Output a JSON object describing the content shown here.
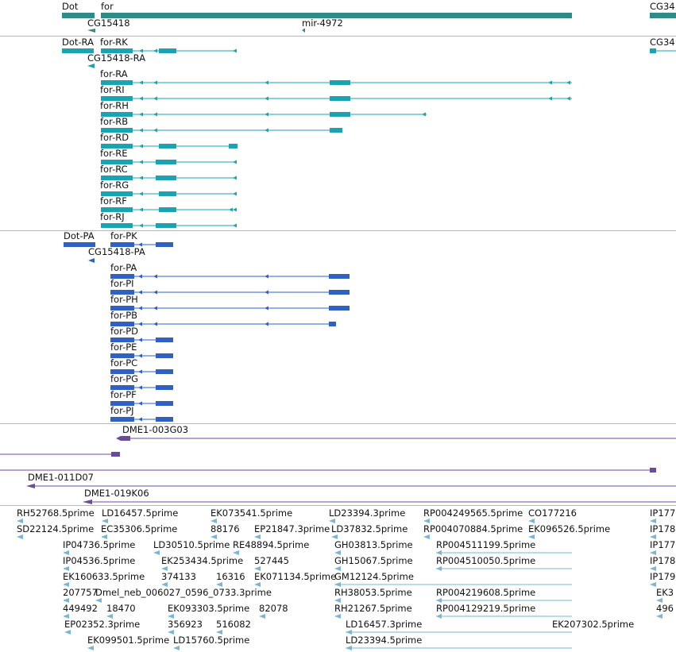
{
  "colors": {
    "gene": "#2e8b86",
    "transcript": "#1aa3b5",
    "protein": "#2d62c2",
    "clone": "#6a4c9c",
    "est": "#7ab4d8",
    "divider": "#b8b8b8"
  },
  "gene_track": {
    "labels": [
      "Dot",
      "for",
      "CG34",
      "CG15418",
      "mir-4972"
    ]
  },
  "transcript_track": {
    "labels": [
      "Dot-RA",
      "for-RK",
      "CG34",
      "CG15418-RA",
      "for-RA",
      "for-RI",
      "for-RH",
      "for-RB",
      "for-RD",
      "for-RE",
      "for-RC",
      "for-RG",
      "for-RF",
      "for-RJ"
    ]
  },
  "protein_track": {
    "labels": [
      "Dot-PA",
      "for-PK",
      "CG15418-PA",
      "for-PA",
      "for-PI",
      "for-PH",
      "for-PB",
      "for-PD",
      "for-PE",
      "for-PC",
      "for-PG",
      "for-PF",
      "for-PJ"
    ]
  },
  "clone_track": {
    "labels": [
      "DME1-003G03",
      "DME1-011D07",
      "DME1-019K06"
    ]
  },
  "est_track": {
    "labels": [
      "RH52768.5prime",
      "LD16457.5prime",
      "EK073541.5prime",
      "LD23394.3prime",
      "RP004249565.5prime",
      "CO177216",
      "IP177",
      "SD22124.5prime",
      "EC35306.5prime",
      "88176",
      "EP21847.3prime",
      "LD37832.5prime",
      "RP004070884.5prime",
      "EK096526.5prime",
      "IP178",
      "IP04736.5prime",
      "LD30510.5prime",
      "RE48894.5prime",
      "GH03813.5prime",
      "RP004511199.5prime",
      "IP177",
      "IP04536.5prime",
      "EK253434.5prime",
      "527445",
      "GH15067.5prime",
      "RP004510050.5prime",
      "IP178",
      "EK160633.5prime",
      "374133",
      "16316",
      "EK071134.5prime",
      "GM12124.5prime",
      "IP179",
      "207757",
      "Dmel_neb_006027_0596_0733.3prime",
      "RH38053.5prime",
      "RP004219608.5prime",
      "EK3",
      "449492",
      "18470",
      "EK093303.5prime",
      "82078",
      "RH21267.5prime",
      "RP004129219.5prime",
      "496",
      "EP02352.3prime",
      "356923",
      "516082",
      "LD16457.3prime",
      "EK207302.5prime",
      "EK099501.5prime",
      "LD15760.5prime",
      "LD23394.5prime"
    ]
  }
}
